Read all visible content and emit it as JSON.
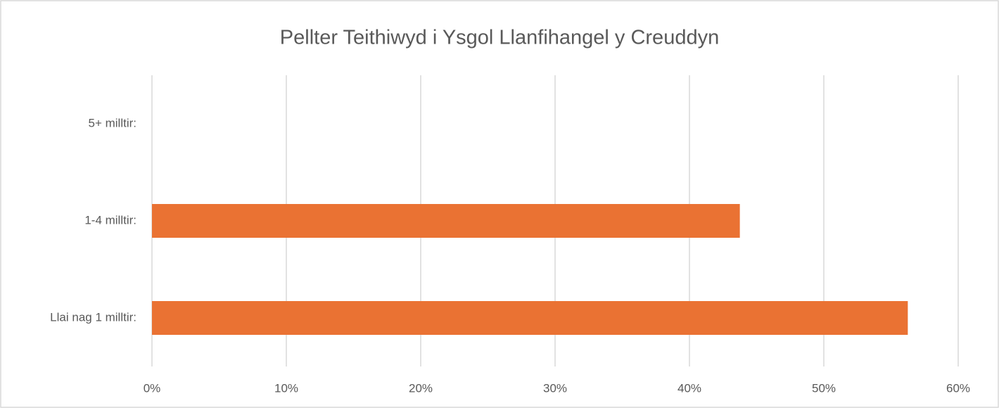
{
  "chart_data": {
    "type": "barh",
    "title": "Pellter Teithiwyd i Ysgol Llanfihangel y Creuddyn",
    "categories": [
      "5+ milltir:",
      "1-4 milltir:",
      "Llai nag 1 milltir:"
    ],
    "values": [
      0,
      43.75,
      56.25
    ],
    "color": "#ea7233",
    "xlim": [
      0,
      60
    ],
    "xticks": [
      {
        "value": 0,
        "label": "0%"
      },
      {
        "value": 10,
        "label": "10%"
      },
      {
        "value": 20,
        "label": "20%"
      },
      {
        "value": 30,
        "label": "30%"
      },
      {
        "value": 40,
        "label": "40%"
      },
      {
        "value": 50,
        "label": "50%"
      },
      {
        "value": 60,
        "label": "60%"
      }
    ],
    "grid": true
  }
}
